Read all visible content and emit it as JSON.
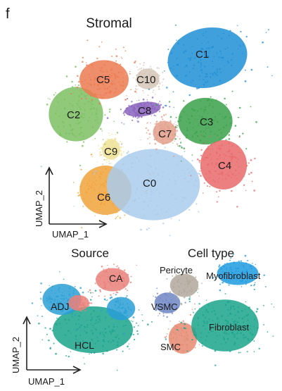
{
  "panel_letter": "f",
  "chart_data": [
    {
      "type": "scatter",
      "title": "Stromal",
      "xlabel": "UMAP_1",
      "ylabel": "UMAP_2",
      "grid": false,
      "legend": "none",
      "clusters": [
        {
          "name": "C0",
          "color": "#a9cbec",
          "center": [
            0.0,
            -0.25
          ]
        },
        {
          "name": "C1",
          "color": "#1f8fd6",
          "center": [
            0.72,
            0.75
          ]
        },
        {
          "name": "C2",
          "color": "#7cbf63",
          "center": [
            -1.0,
            0.2
          ]
        },
        {
          "name": "C3",
          "color": "#3aa14a",
          "center": [
            0.72,
            0.15
          ]
        },
        {
          "name": "C4",
          "color": "#e9696a",
          "center": [
            0.95,
            -0.4
          ]
        },
        {
          "name": "C5",
          "color": "#ec7a50",
          "center": [
            -0.6,
            0.65
          ]
        },
        {
          "name": "C6",
          "color": "#f0a23a",
          "center": [
            -0.62,
            -0.75
          ]
        },
        {
          "name": "C7",
          "color": "#e3a08d",
          "center": [
            0.17,
            0.05
          ]
        },
        {
          "name": "C8",
          "color": "#8a63bd",
          "center": [
            -0.1,
            0.35
          ]
        },
        {
          "name": "C9",
          "color": "#efe39a",
          "center": [
            -0.5,
            -0.2
          ]
        },
        {
          "name": "C10",
          "color": "#d6c7b8",
          "center": [
            -0.07,
            0.7
          ]
        }
      ]
    },
    {
      "type": "scatter",
      "title": "Source",
      "xlabel": "UMAP_1",
      "ylabel": "UMAP_2",
      "grid": false,
      "legend": "none",
      "groups": [
        {
          "name": "CA",
          "color": "#e9807a"
        },
        {
          "name": "ADJ",
          "color": "#2a9fd6"
        },
        {
          "name": "HCL",
          "color": "#1aa38a"
        }
      ]
    },
    {
      "type": "scatter",
      "title": "Cell type",
      "grid": false,
      "legend": "none",
      "groups": [
        {
          "name": "Pericyte",
          "color": "#b2a89c"
        },
        {
          "name": "Myofibroblast",
          "color": "#1f9be0"
        },
        {
          "name": "VSMC",
          "color": "#6f86c4"
        },
        {
          "name": "Fibroblast",
          "color": "#1aa38a"
        },
        {
          "name": "SMC",
          "color": "#e58a70"
        }
      ]
    }
  ]
}
